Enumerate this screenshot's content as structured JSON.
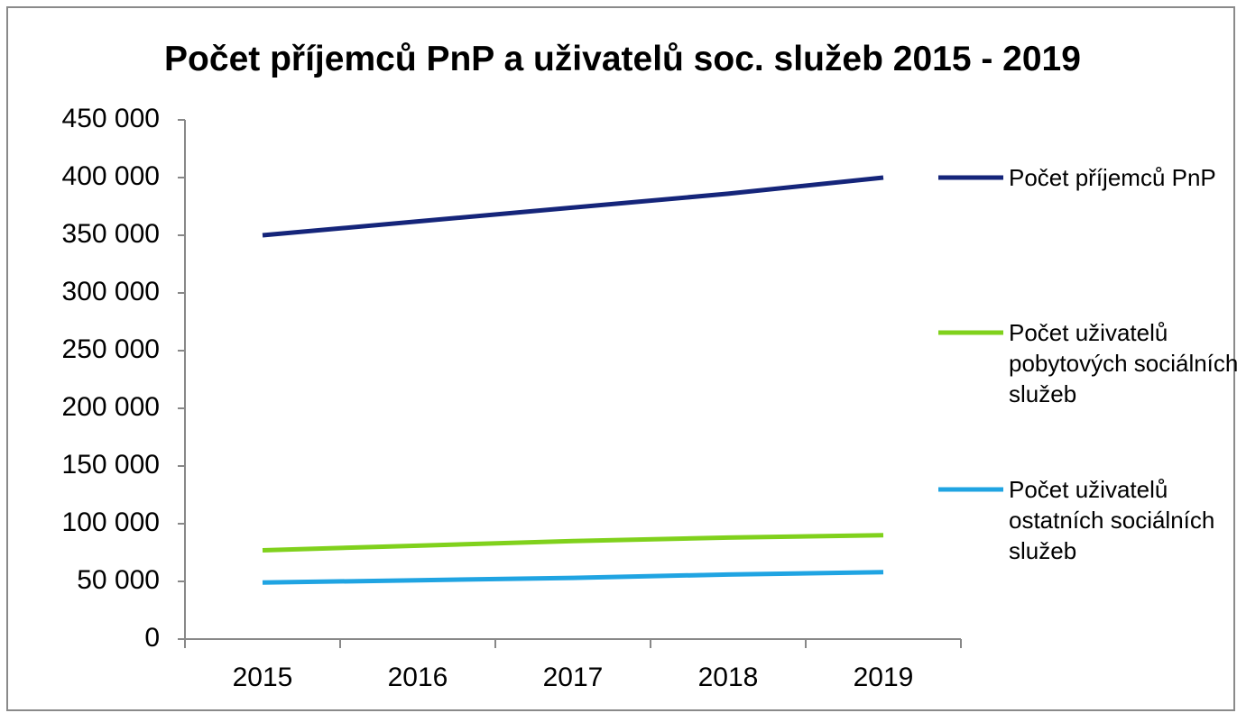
{
  "chart_data": {
    "type": "line",
    "title": "Počet příjemců PnP a uživatelů soc. služeb 2015 - 2019",
    "categories": [
      "2015",
      "2016",
      "2017",
      "2018",
      "2019"
    ],
    "series": [
      {
        "name": "Počet příjemců PnP",
        "color": "#15257a",
        "values": [
          350000,
          362000,
          374000,
          386000,
          400000
        ]
      },
      {
        "name": "Počet uživatelů pobytových sociálních služeb",
        "color": "#80d11c",
        "values": [
          77000,
          81000,
          85000,
          88000,
          90000
        ]
      },
      {
        "name": "Počet uživatelů ostatních sociálních služeb",
        "color": "#20a4e2",
        "values": [
          49000,
          51000,
          53000,
          56000,
          58000
        ]
      }
    ],
    "ylim": [
      0,
      450000
    ],
    "yticks": [
      0,
      {
        "value": 50000,
        "label": "50 000"
      },
      {
        "value": 100000,
        "label": "100 000"
      },
      {
        "value": 150000,
        "label": "150 000"
      },
      {
        "value": 200000,
        "label": "200 000"
      },
      {
        "value": 250000,
        "label": "250 000"
      },
      {
        "value": 300000,
        "label": "300 000"
      },
      {
        "value": 350000,
        "label": "350 000"
      },
      {
        "value": 400000,
        "label": "400 000"
      },
      {
        "value": 450000,
        "label": "450 000"
      }
    ],
    "grid": false,
    "legend": "right"
  }
}
